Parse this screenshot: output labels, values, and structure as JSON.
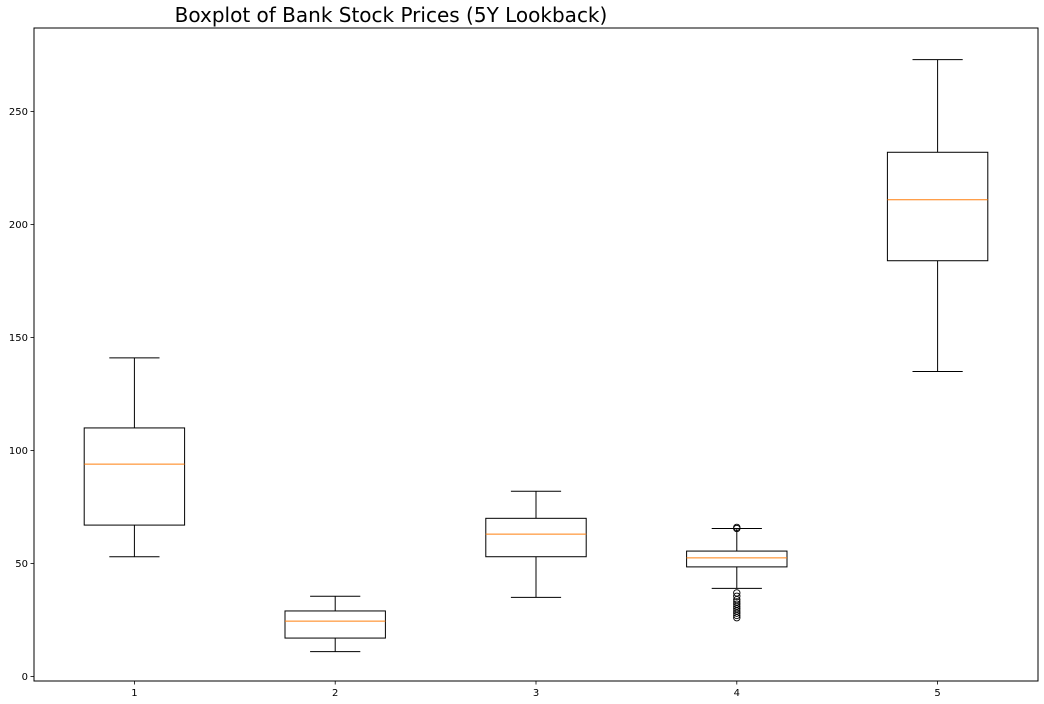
{
  "chart_data": {
    "type": "boxplot",
    "title": "Boxplot of Bank Stock Prices (5Y Lookback)",
    "xlabel": "",
    "ylabel": "",
    "categories": [
      "1",
      "2",
      "3",
      "4",
      "5"
    ],
    "yticks": [
      0,
      50,
      100,
      150,
      200,
      250
    ],
    "ylim": [
      -2,
      287
    ],
    "xlim": [
      0.5,
      5.5
    ],
    "grid": false,
    "colors": {
      "box": "#000000",
      "median": "#ff7f0e",
      "background": "#ffffff"
    },
    "boxes": [
      {
        "category": "1",
        "whisker_low": 53,
        "q1": 67,
        "median": 94,
        "q3": 110,
        "whisker_high": 141,
        "outliers": []
      },
      {
        "category": "2",
        "whisker_low": 11,
        "q1": 17,
        "median": 24.5,
        "q3": 29,
        "whisker_high": 35.5,
        "outliers": []
      },
      {
        "category": "3",
        "whisker_low": 35,
        "q1": 53,
        "median": 63,
        "q3": 70,
        "whisker_high": 82,
        "outliers": []
      },
      {
        "category": "4",
        "whisker_low": 39,
        "q1": 48.5,
        "median": 52.5,
        "q3": 55.5,
        "whisker_high": 65.5,
        "outliers": [
          66,
          65.5,
          37,
          35.5,
          34,
          33,
          32,
          31,
          30,
          29,
          28,
          27,
          26
        ]
      },
      {
        "category": "5",
        "whisker_low": 135,
        "q1": 184,
        "median": 211,
        "q3": 232,
        "whisker_high": 273,
        "outliers": []
      }
    ]
  }
}
